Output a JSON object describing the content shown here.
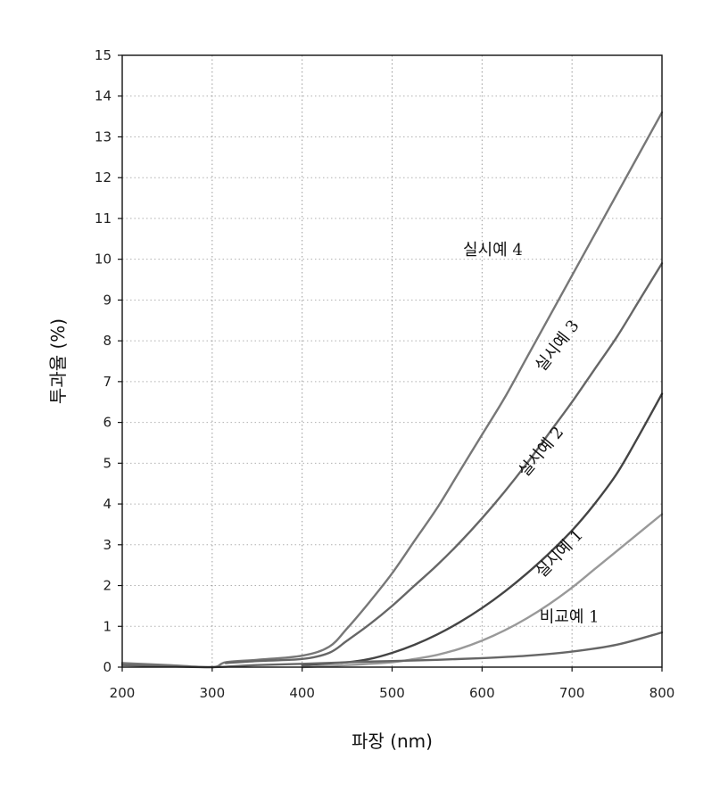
{
  "chart_data": {
    "type": "line",
    "xlabel": "파장 (nm)",
    "ylabel": "투과율 (%)",
    "xlim": [
      200,
      800
    ],
    "ylim": [
      0,
      15
    ],
    "xticks": [
      200,
      300,
      400,
      500,
      600,
      700,
      800
    ],
    "yticks": [
      0,
      1,
      2,
      3,
      4,
      5,
      6,
      7,
      8,
      9,
      10,
      11,
      12,
      13,
      14,
      15
    ],
    "grid": true,
    "series": [
      {
        "name": "실시예 4",
        "x": [
          200,
          250,
          300,
          315,
          350,
          400,
          430,
          450,
          475,
          500,
          525,
          550,
          575,
          600,
          625,
          650,
          675,
          700,
          725,
          750,
          775,
          800
        ],
        "y": [
          0.1,
          0.05,
          0.0,
          0.12,
          0.18,
          0.28,
          0.5,
          0.95,
          1.6,
          2.3,
          3.1,
          3.9,
          4.8,
          5.7,
          6.6,
          7.6,
          8.6,
          9.6,
          10.6,
          11.6,
          12.6,
          13.6
        ],
        "color": "#777777"
      },
      {
        "name": "실시예 3",
        "x": [
          315,
          350,
          400,
          430,
          450,
          475,
          500,
          525,
          550,
          575,
          600,
          625,
          650,
          675,
          700,
          725,
          750,
          775,
          800
        ],
        "y": [
          0.1,
          0.15,
          0.2,
          0.35,
          0.65,
          1.05,
          1.5,
          2.0,
          2.5,
          3.05,
          3.65,
          4.3,
          5.0,
          5.75,
          6.5,
          7.3,
          8.1,
          9.0,
          9.9
        ],
        "color": "#666666"
      },
      {
        "name": "실시예 2",
        "x": [
          400,
          450,
          475,
          500,
          525,
          550,
          575,
          600,
          625,
          650,
          675,
          700,
          725,
          750,
          775,
          800
        ],
        "y": [
          0.05,
          0.12,
          0.2,
          0.35,
          0.55,
          0.8,
          1.1,
          1.45,
          1.85,
          2.3,
          2.8,
          3.35,
          4.0,
          4.75,
          5.7,
          6.7
        ],
        "color": "#444444"
      },
      {
        "name": "실시예 1",
        "x": [
          400,
          450,
          500,
          525,
          550,
          575,
          600,
          625,
          650,
          675,
          700,
          725,
          750,
          775,
          800
        ],
        "y": [
          0.0,
          0.05,
          0.12,
          0.2,
          0.3,
          0.45,
          0.65,
          0.9,
          1.2,
          1.55,
          1.95,
          2.4,
          2.85,
          3.3,
          3.75
        ],
        "color": "#999999"
      },
      {
        "name": "비교예 1",
        "x": [
          200,
          250,
          300,
          350,
          400,
          450,
          500,
          550,
          600,
          650,
          700,
          750,
          800
        ],
        "y": [
          0.05,
          0.02,
          0.0,
          0.05,
          0.08,
          0.12,
          0.15,
          0.18,
          0.22,
          0.28,
          0.38,
          0.55,
          0.85
        ],
        "color": "#666666"
      }
    ],
    "annotations": [
      {
        "text": "실시예 4",
        "series": "실시예 4",
        "at_x": 612,
        "at_y": 10.1,
        "rotate": 0
      },
      {
        "text": "실시예 3",
        "series": "실시예 3",
        "at_x": 688,
        "at_y": 7.8,
        "rotate": -52
      },
      {
        "text": "실시예 2",
        "series": "실시예 2",
        "at_x": 670,
        "at_y": 5.2,
        "rotate": -50
      },
      {
        "text": "실시예 1",
        "series": "실시예 1",
        "at_x": 690,
        "at_y": 2.7,
        "rotate": -46
      },
      {
        "text": "비교예 1",
        "series": "비교예 1",
        "at_x": 697,
        "at_y": 1.1,
        "rotate": 0
      }
    ]
  }
}
